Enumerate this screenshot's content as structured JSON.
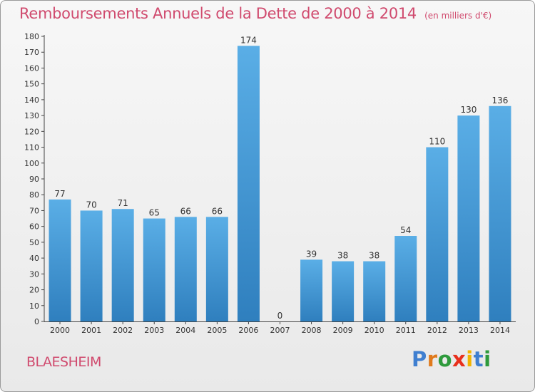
{
  "chart_data": {
    "type": "bar",
    "title": "Remboursements Annuels de la Dette de 2000 à 2014",
    "subtitle": "(en milliers d'€)",
    "categories": [
      "2000",
      "2001",
      "2002",
      "2003",
      "2004",
      "2005",
      "2006",
      "2007",
      "2008",
      "2009",
      "2010",
      "2011",
      "2012",
      "2013",
      "2014"
    ],
    "values": [
      77,
      70,
      71,
      65,
      66,
      66,
      174,
      0,
      39,
      38,
      38,
      54,
      110,
      130,
      136
    ],
    "ylim": [
      0,
      180
    ],
    "ytick_step": 10,
    "xlabel": "",
    "ylabel": "",
    "grid": false,
    "colors": {
      "bar_light": "#5aaee6",
      "bar_dark": "#2f7fbe",
      "accent": "#d04a6e"
    }
  },
  "footer": {
    "commune": "BLAESHEIM",
    "logo_letters": [
      "P",
      "r",
      "o",
      "x",
      "i",
      "t",
      "i"
    ],
    "logo_colors": [
      "#3f7fd0",
      "#e07a1c",
      "#2e9a3c",
      "#e8301c",
      "#f2b400",
      "#3f7fd0",
      "#2e9a3c"
    ]
  }
}
